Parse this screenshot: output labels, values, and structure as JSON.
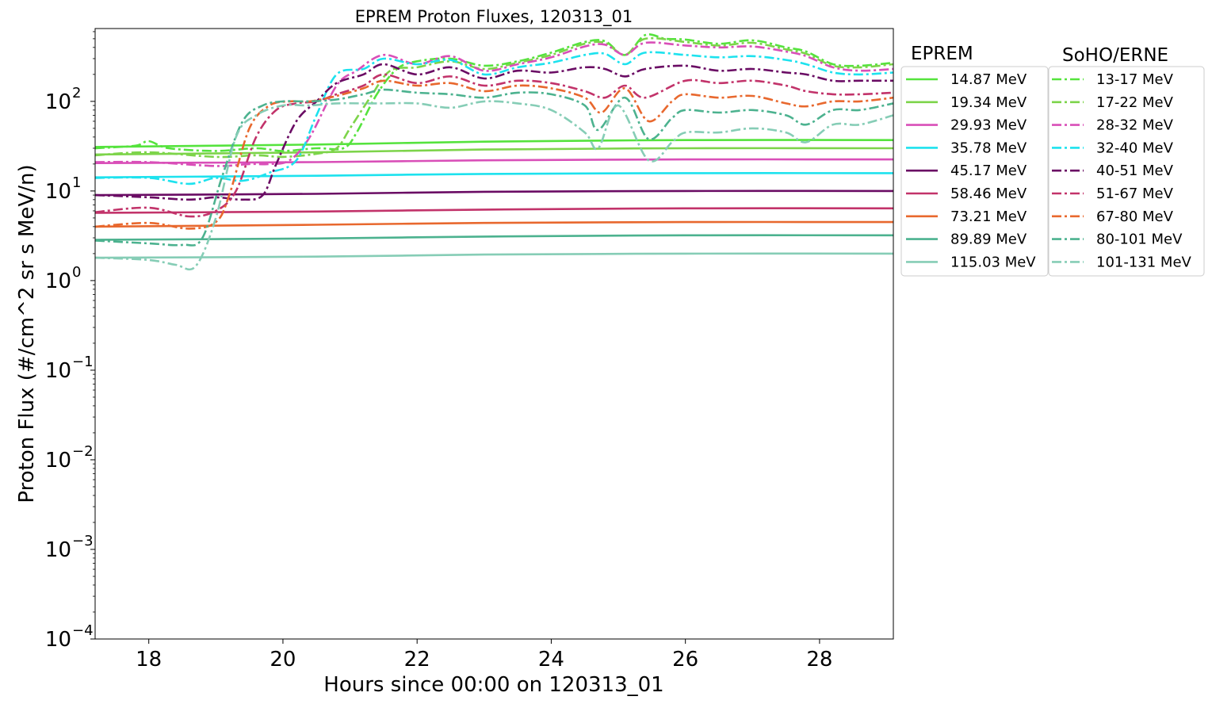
{
  "chart_data": {
    "type": "line",
    "title": "EPREM Proton Fluxes, 120313_01",
    "xlabel": "Hours since 00:00 on 120313_01",
    "ylabel": "Proton Flux (#/cm^2 sr s MeV/n)",
    "xlim": [
      17.2,
      29.1
    ],
    "ylim": [
      0.0001,
      650
    ],
    "yscale": "log",
    "x_ticks": [
      18,
      20,
      22,
      24,
      26,
      28
    ],
    "y_ticks": [
      {
        "value": 0.0001,
        "base": "10",
        "exp": "−4"
      },
      {
        "value": 0.001,
        "base": "10",
        "exp": "−3"
      },
      {
        "value": 0.01,
        "base": "10",
        "exp": "−2"
      },
      {
        "value": 0.1,
        "base": "10",
        "exp": "−1"
      },
      {
        "value": 1,
        "base": "10",
        "exp": "0"
      },
      {
        "value": 10,
        "base": "10",
        "exp": "1"
      },
      {
        "value": 100,
        "base": "10",
        "exp": "2"
      }
    ],
    "grid": false,
    "legends": [
      {
        "title": "EPREM",
        "placement": "outside-right",
        "style": "solid"
      },
      {
        "title": "SoHO/ERNE",
        "placement": "outside-right",
        "style": "dashdot"
      }
    ],
    "eprem_series": [
      {
        "name": "14.87 MeV",
        "color": "#55e33d",
        "x": [
          17.2,
          20.5,
          23,
          26,
          29.1
        ],
        "y": [
          31,
          33,
          35.5,
          37,
          37
        ]
      },
      {
        "name": "19.34 MeV",
        "color": "#7dd44a",
        "x": [
          17.2,
          20.5,
          23,
          26,
          29.1
        ],
        "y": [
          25.5,
          27,
          29,
          30,
          30
        ]
      },
      {
        "name": "29.93 MeV",
        "color": "#d94fb8",
        "x": [
          17.2,
          20.5,
          23,
          26,
          29.1
        ],
        "y": [
          20.5,
          21,
          22,
          22.5,
          22.5
        ]
      },
      {
        "name": "35.78 MeV",
        "color": "#1de2ee",
        "x": [
          17.2,
          20.5,
          23,
          26,
          29.1
        ],
        "y": [
          14.2,
          14.8,
          15.5,
          15.8,
          15.8
        ]
      },
      {
        "name": "45.17 MeV",
        "color": "#6a0c64",
        "x": [
          17.2,
          20.5,
          23,
          26,
          29.1
        ],
        "y": [
          9,
          9.3,
          9.8,
          10,
          10
        ]
      },
      {
        "name": "58.46 MeV",
        "color": "#c2336a",
        "x": [
          17.2,
          20.5,
          23,
          26,
          29.1
        ],
        "y": [
          5.7,
          5.9,
          6.2,
          6.4,
          6.4
        ]
      },
      {
        "name": "73.21 MeV",
        "color": "#e8682e",
        "x": [
          17.2,
          20.5,
          23,
          26,
          29.1
        ],
        "y": [
          4.0,
          4.2,
          4.4,
          4.5,
          4.5
        ]
      },
      {
        "name": "89.89 MeV",
        "color": "#4cb28f",
        "x": [
          17.2,
          20.5,
          23,
          26,
          29.1
        ],
        "y": [
          2.85,
          2.95,
          3.1,
          3.2,
          3.2
        ]
      },
      {
        "name": "115.03 MeV",
        "color": "#86cdb6",
        "x": [
          17.2,
          20.5,
          23,
          26,
          29.1
        ],
        "y": [
          1.8,
          1.85,
          1.95,
          2.0,
          2.0
        ]
      }
    ],
    "erne_series": [
      {
        "name": "13-17 MeV",
        "color": "#55e33d",
        "x": [
          17.2,
          17.8,
          18.0,
          18.3,
          19,
          19.6,
          20,
          20.5,
          20.9,
          21.1,
          21.4,
          21.7,
          22,
          22.5,
          23,
          23.5,
          24,
          24.5,
          24.8,
          25.1,
          25.4,
          25.7,
          26,
          26.5,
          27,
          27.5,
          27.8,
          28.2,
          28.6,
          29.1
        ],
        "y": [
          30,
          32,
          36,
          30,
          28,
          30,
          28,
          30,
          30,
          45,
          120,
          230,
          280,
          300,
          250,
          280,
          350,
          460,
          470,
          330,
          550,
          500,
          490,
          440,
          480,
          400,
          360,
          260,
          250,
          270
        ]
      },
      {
        "name": "17-22 MeV",
        "color": "#7dd44a",
        "x": [
          17.2,
          18,
          19,
          19.6,
          20,
          20.5,
          20.8,
          21.0,
          21.3,
          21.6,
          22,
          22.5,
          23,
          23.5,
          24,
          24.5,
          24.8,
          25.1,
          25.4,
          26,
          26.5,
          27,
          27.5,
          27.8,
          28.2,
          28.6,
          29.1
        ],
        "y": [
          25,
          27,
          24,
          25,
          24,
          26,
          30,
          50,
          110,
          220,
          240,
          280,
          230,
          270,
          330,
          440,
          450,
          330,
          500,
          460,
          420,
          450,
          380,
          340,
          250,
          240,
          260
        ]
      },
      {
        "name": "28-32 MeV",
        "color": "#d94fb8",
        "x": [
          17.2,
          18,
          19,
          19.5,
          19.8,
          20.1,
          20.4,
          20.8,
          21.1,
          21.5,
          22,
          22.5,
          23,
          23.5,
          24,
          24.5,
          24.8,
          25.1,
          25.4,
          26,
          26.5,
          27,
          27.5,
          27.8,
          28.2,
          28.6,
          29.1
        ],
        "y": [
          21,
          21,
          19,
          20,
          20,
          22,
          40,
          150,
          220,
          330,
          260,
          320,
          220,
          260,
          310,
          410,
          430,
          330,
          450,
          420,
          400,
          410,
          360,
          320,
          240,
          220,
          230
        ]
      },
      {
        "name": "32-40 MeV",
        "color": "#1de2ee",
        "x": [
          17.2,
          18,
          18.6,
          19,
          19.4,
          19.8,
          20.2,
          20.5,
          20.8,
          21.2,
          21.5,
          22,
          22.5,
          23,
          23.5,
          24,
          24.5,
          24.8,
          25.1,
          25.4,
          26,
          26.5,
          27,
          27.5,
          27.8,
          28.2,
          28.6,
          29.1
        ],
        "y": [
          14,
          14,
          12,
          14,
          13,
          16,
          22,
          70,
          200,
          230,
          300,
          260,
          290,
          200,
          240,
          270,
          330,
          340,
          260,
          350,
          330,
          310,
          320,
          290,
          260,
          210,
          200,
          210
        ]
      },
      {
        "name": "40-51 MeV",
        "color": "#6a0c64",
        "x": [
          17.2,
          18,
          18.6,
          19,
          19.4,
          19.7,
          19.9,
          20.2,
          20.5,
          20.8,
          21.2,
          21.5,
          22,
          22.5,
          23,
          23.5,
          24,
          24.5,
          24.8,
          25.1,
          25.4,
          26,
          26.5,
          27,
          27.5,
          27.8,
          28.2,
          28.6,
          29.1
        ],
        "y": [
          9,
          8.5,
          8,
          8.5,
          8,
          9,
          20,
          60,
          100,
          160,
          200,
          260,
          200,
          240,
          180,
          220,
          210,
          240,
          230,
          190,
          230,
          250,
          220,
          230,
          210,
          200,
          170,
          170,
          170
        ]
      },
      {
        "name": "51-67 MeV",
        "color": "#c2336a",
        "x": [
          17.2,
          18,
          18.6,
          19,
          19.3,
          19.6,
          19.9,
          20.2,
          20.5,
          20.8,
          21.2,
          21.5,
          22,
          22.5,
          23,
          23.5,
          24,
          24.5,
          24.8,
          25.1,
          25.4,
          26,
          26.5,
          27,
          27.5,
          27.8,
          28.2,
          28.6,
          29.1
        ],
        "y": [
          5.8,
          6.5,
          5.2,
          6,
          10,
          40,
          80,
          95,
          100,
          120,
          150,
          200,
          160,
          190,
          150,
          170,
          160,
          130,
          110,
          150,
          110,
          170,
          160,
          170,
          150,
          130,
          120,
          120,
          125
        ]
      },
      {
        "name": "67-80 MeV",
        "color": "#e8682e",
        "x": [
          17.2,
          18,
          18.6,
          19,
          19.2,
          19.5,
          19.8,
          20.1,
          20.4,
          20.8,
          21.2,
          21.5,
          22,
          22.5,
          23,
          23.5,
          24,
          24.5,
          24.75,
          25.1,
          25.45,
          25.8,
          26,
          26.5,
          27,
          27.5,
          27.8,
          28.2,
          28.6,
          29.1
        ],
        "y": [
          4,
          4.4,
          3.8,
          4.5,
          9,
          50,
          90,
          100,
          100,
          115,
          140,
          170,
          150,
          160,
          130,
          150,
          140,
          110,
          75,
          140,
          60,
          100,
          120,
          110,
          115,
          95,
          88,
          100,
          100,
          110
        ]
      },
      {
        "name": "80-101 MeV",
        "color": "#4cb28f",
        "x": [
          17.2,
          18,
          18.5,
          18.8,
          19.1,
          19.4,
          19.7,
          20,
          20.4,
          20.8,
          21.2,
          21.5,
          22,
          22.5,
          23,
          23.5,
          24,
          24.5,
          24.7,
          25.1,
          25.45,
          25.8,
          26,
          26.5,
          27,
          27.5,
          27.8,
          28.2,
          28.6,
          29.1
        ],
        "y": [
          2.8,
          2.6,
          2.5,
          3.0,
          15,
          60,
          90,
          100,
          100,
          105,
          120,
          135,
          125,
          120,
          110,
          125,
          120,
          90,
          48,
          110,
          38,
          65,
          80,
          75,
          80,
          70,
          55,
          80,
          80,
          95
        ]
      },
      {
        "name": "101-131 MeV",
        "color": "#86cdb6",
        "x": [
          17.2,
          18,
          18.4,
          18.7,
          19.0,
          19.3,
          19.6,
          20,
          20.4,
          20.8,
          21.2,
          21.5,
          22,
          22.5,
          23,
          23.5,
          24,
          24.5,
          24.7,
          25.0,
          25.45,
          25.8,
          26,
          26.5,
          27,
          27.5,
          27.8,
          28.2,
          28.6,
          29.1
        ],
        "y": [
          1.8,
          1.7,
          1.5,
          1.45,
          5,
          40,
          70,
          90,
          90,
          95,
          95,
          95,
          95,
          85,
          100,
          95,
          80,
          45,
          30,
          90,
          22,
          35,
          45,
          45,
          50,
          45,
          35,
          55,
          55,
          70
        ]
      }
    ]
  }
}
